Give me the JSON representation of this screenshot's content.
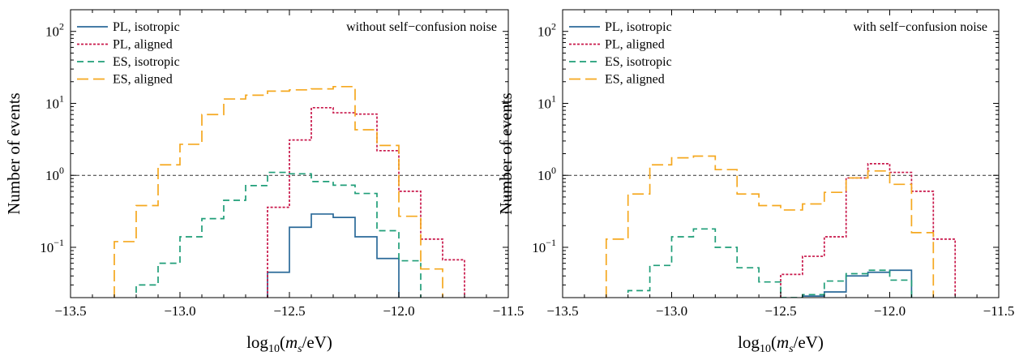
{
  "chart_data": [
    {
      "type": "step",
      "annotation": "without self−confusion noise",
      "xlabel": "log10(ms/eV)",
      "ylabel": "Number of events",
      "xlim": [
        -13.5,
        -11.5
      ],
      "ylim": [
        0.02,
        200
      ],
      "yscale": "log",
      "xticks": [
        -13.5,
        -13.0,
        -12.5,
        -12.0,
        -11.5
      ],
      "xtick_labels": [
        "−13.5",
        "−13.0",
        "−12.5",
        "−12.0",
        "−11.5"
      ],
      "yticks": [
        0.1,
        1,
        10,
        100
      ],
      "ytick_labels": [
        {
          "base": "10",
          "exp": "−1"
        },
        {
          "base": "10",
          "exp": "0"
        },
        {
          "base": "10",
          "exp": "1"
        },
        {
          "base": "10",
          "exp": "2"
        }
      ],
      "reference_line": 1,
      "legend_position": "top-left",
      "bin_edges": [
        -13.3,
        -13.2,
        -13.1,
        -13.0,
        -12.9,
        -12.8,
        -12.7,
        -12.6,
        -12.5,
        -12.4,
        -12.3,
        -12.2,
        -12.1,
        -12.0,
        -11.9,
        -11.8,
        -11.7
      ],
      "series": [
        {
          "name": "PL, isotropic",
          "color": "#2b6a99",
          "dash": "solid",
          "values": [
            null,
            null,
            null,
            null,
            null,
            null,
            null,
            0.045,
            0.19,
            0.29,
            0.26,
            0.14,
            0.07,
            null,
            null,
            null
          ]
        },
        {
          "name": "PL, aligned",
          "color": "#c8174a",
          "dash": "dotted",
          "values": [
            null,
            null,
            null,
            null,
            null,
            null,
            null,
            0.36,
            3.1,
            8.7,
            7.4,
            7.1,
            2.2,
            0.6,
            0.13,
            0.067
          ]
        },
        {
          "name": "ES, isotropic",
          "color": "#1f9e78",
          "dash": "dashed",
          "values": [
            null,
            0.03,
            0.06,
            0.14,
            0.25,
            0.45,
            0.72,
            1.1,
            1.05,
            0.82,
            0.73,
            0.56,
            0.17,
            0.065,
            null,
            null
          ]
        },
        {
          "name": "ES, aligned",
          "color": "#f5a81f",
          "dash": "longdash",
          "values": [
            0.12,
            0.38,
            1.4,
            2.7,
            7.0,
            11.5,
            13.0,
            14.8,
            15.4,
            15.9,
            17.1,
            4.3,
            2.6,
            0.27,
            0.05,
            null
          ]
        }
      ]
    },
    {
      "type": "step",
      "annotation": "with self−confusion noise",
      "xlabel": "log10(ms/eV)",
      "ylabel": "Number of events",
      "xlim": [
        -13.5,
        -11.5
      ],
      "ylim": [
        0.02,
        200
      ],
      "yscale": "log",
      "xticks": [
        -13.5,
        -13.0,
        -12.5,
        -12.0,
        -11.5
      ],
      "xtick_labels": [
        "−13.5",
        "−13.0",
        "−12.5",
        "−12.0",
        "−11.5"
      ],
      "yticks": [
        0.1,
        1,
        10,
        100
      ],
      "ytick_labels": [
        {
          "base": "10",
          "exp": "−1"
        },
        {
          "base": "10",
          "exp": "0"
        },
        {
          "base": "10",
          "exp": "1"
        },
        {
          "base": "10",
          "exp": "2"
        }
      ],
      "reference_line": 1,
      "legend_position": "top-left",
      "bin_edges": [
        -13.3,
        -13.2,
        -13.1,
        -13.0,
        -12.9,
        -12.8,
        -12.7,
        -12.6,
        -12.5,
        -12.4,
        -12.3,
        -12.2,
        -12.1,
        -12.0,
        -11.9,
        -11.8,
        -11.7
      ],
      "series": [
        {
          "name": "PL, isotropic",
          "color": "#2b6a99",
          "dash": "solid",
          "values": [
            null,
            null,
            null,
            null,
            null,
            null,
            null,
            null,
            0.018,
            0.021,
            0.024,
            0.04,
            0.045,
            0.048,
            null,
            null
          ]
        },
        {
          "name": "PL, aligned",
          "color": "#c8174a",
          "dash": "dotted",
          "values": [
            null,
            null,
            null,
            null,
            null,
            null,
            null,
            null,
            0.042,
            0.075,
            0.14,
            0.92,
            1.45,
            1.1,
            0.6,
            0.13
          ]
        },
        {
          "name": "ES, isotropic",
          "color": "#1f9e78",
          "dash": "dashed",
          "values": [
            null,
            0.025,
            0.056,
            0.14,
            0.18,
            0.1,
            0.052,
            0.033,
            0.02,
            0.022,
            0.034,
            0.043,
            0.048,
            0.035,
            null,
            null
          ]
        },
        {
          "name": "ES, aligned",
          "color": "#f5a81f",
          "dash": "longdash",
          "values": [
            0.13,
            0.55,
            1.4,
            1.75,
            1.85,
            1.2,
            0.55,
            0.38,
            0.33,
            0.4,
            0.58,
            0.92,
            1.15,
            0.75,
            0.16,
            null
          ]
        }
      ]
    }
  ]
}
